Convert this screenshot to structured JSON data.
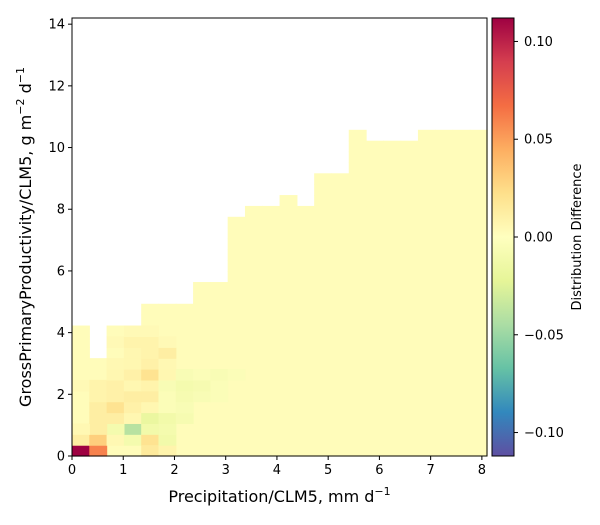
{
  "chart_data": {
    "type": "heatmap",
    "title": "",
    "xlabel": {
      "text": "Precipitation/CLM5,  mm d",
      "sup": "−1"
    },
    "ylabel": {
      "pre": "GrossPrimaryProductivity/CLM5,  g m",
      "sup1": "−2",
      "mid": " d",
      "sup2": "−1"
    },
    "xlim": [
      0,
      8.1
    ],
    "ylim": [
      0,
      14.2
    ],
    "x_ticks": [
      {
        "value": 0,
        "label": "0"
      },
      {
        "value": 1,
        "label": "1"
      },
      {
        "value": 2,
        "label": "2"
      },
      {
        "value": 3,
        "label": "3"
      },
      {
        "value": 4,
        "label": "4"
      },
      {
        "value": 5,
        "label": "5"
      },
      {
        "value": 6,
        "label": "6"
      },
      {
        "value": 7,
        "label": "7"
      },
      {
        "value": 8,
        "label": "8"
      }
    ],
    "y_ticks": [
      {
        "value": 0,
        "label": "0"
      },
      {
        "value": 2,
        "label": "2"
      },
      {
        "value": 4,
        "label": "4"
      },
      {
        "value": 6,
        "label": "6"
      },
      {
        "value": 8,
        "label": "8"
      },
      {
        "value": 10,
        "label": "10"
      },
      {
        "value": 12,
        "label": "12"
      },
      {
        "value": 14,
        "label": "14"
      }
    ],
    "bin": {
      "dx": 0.3376,
      "dy": 0.3525,
      "nx": 24,
      "ny": 40
    },
    "upper_bound_rows": [
      {
        "cols": [
          0
        ],
        "rows": 12
      },
      {
        "cols": [
          1
        ],
        "rows": 9
      },
      {
        "cols": [
          2,
          3
        ],
        "rows": 12
      },
      {
        "cols": [
          4,
          5,
          6
        ],
        "rows": 14
      },
      {
        "cols": [
          7,
          8
        ],
        "rows": 16
      },
      {
        "cols": [
          9
        ],
        "rows": 22
      },
      {
        "cols": [
          10,
          11
        ],
        "rows": 23
      },
      {
        "cols": [
          12
        ],
        "rows": 24
      },
      {
        "cols": [
          13
        ],
        "rows": 23
      },
      {
        "cols": [
          14,
          15
        ],
        "rows": 26
      },
      {
        "cols": [
          16
        ],
        "rows": 26
      },
      {
        "cols": [
          17,
          18,
          19
        ],
        "rows": 28
      },
      {
        "cols": [
          20,
          21
        ],
        "rows": 30
      },
      {
        "cols": [
          22,
          23
        ],
        "rows": 30
      }
    ],
    "tall_cells": [
      {
        "col": 16,
        "row_top": 30
      },
      {
        "col": 17,
        "row_top": 29
      },
      {
        "col": 18,
        "row_top": 29
      },
      {
        "col": 19,
        "row_top": 29
      },
      {
        "col": 20,
        "row_top": 30
      },
      {
        "col": 21,
        "row_top": 30
      },
      {
        "col": 22,
        "row_top": 29
      },
      {
        "col": 23,
        "row_top": 29
      },
      {
        "col": 24,
        "row_top": 29
      },
      {
        "col": 25,
        "row_top": 29
      },
      {
        "col": 26,
        "row_top": 28
      },
      {
        "col": 27,
        "row_top": 28
      }
    ],
    "cells": [
      {
        "col": 0,
        "row": 0,
        "value": 0.112
      },
      {
        "col": 1,
        "row": 0,
        "value": 0.06
      },
      {
        "col": 0,
        "row": 1,
        "value": 0.012
      },
      {
        "col": 1,
        "row": 1,
        "value": 0.03
      },
      {
        "col": 2,
        "row": 1,
        "value": 0.005
      },
      {
        "col": 3,
        "row": 1,
        "value": -0.01
      },
      {
        "col": 3,
        "row": 2,
        "value": -0.04
      },
      {
        "col": 4,
        "row": 1,
        "value": 0.02
      },
      {
        "col": 4,
        "row": 0,
        "value": 0.015
      },
      {
        "col": 5,
        "row": 0,
        "value": 0.008
      },
      {
        "col": 5,
        "row": 1,
        "value": -0.012
      },
      {
        "col": 5,
        "row": 2,
        "value": -0.01
      },
      {
        "col": 4,
        "row": 2,
        "value": -0.012
      },
      {
        "col": 2,
        "row": 2,
        "value": -0.01
      },
      {
        "col": 1,
        "row": 2,
        "value": 0.012
      },
      {
        "col": 0,
        "row": 2,
        "value": 0.005
      },
      {
        "col": 1,
        "row": 3,
        "value": 0.012
      },
      {
        "col": 2,
        "row": 3,
        "value": 0.012
      },
      {
        "col": 3,
        "row": 3,
        "value": 0.006
      },
      {
        "col": 4,
        "row": 3,
        "value": -0.018
      },
      {
        "col": 5,
        "row": 3,
        "value": -0.012
      },
      {
        "col": 6,
        "row": 3,
        "value": -0.008
      },
      {
        "col": 1,
        "row": 4,
        "value": 0.012
      },
      {
        "col": 2,
        "row": 4,
        "value": 0.02
      },
      {
        "col": 3,
        "row": 4,
        "value": 0.01
      },
      {
        "col": 4,
        "row": 4,
        "value": 0.006
      },
      {
        "col": 5,
        "row": 4,
        "value": -0.004
      },
      {
        "col": 6,
        "row": 4,
        "value": -0.006
      },
      {
        "col": 1,
        "row": 5,
        "value": 0.008
      },
      {
        "col": 2,
        "row": 5,
        "value": 0.01
      },
      {
        "col": 3,
        "row": 5,
        "value": 0.012
      },
      {
        "col": 4,
        "row": 5,
        "value": 0.012
      },
      {
        "col": 5,
        "row": 5,
        "value": -0.004
      },
      {
        "col": 6,
        "row": 5,
        "value": -0.008
      },
      {
        "col": 7,
        "row": 5,
        "value": -0.006
      },
      {
        "col": 8,
        "row": 5,
        "value": -0.004
      },
      {
        "col": 0,
        "row": 6,
        "value": 0.004
      },
      {
        "col": 1,
        "row": 6,
        "value": 0.008
      },
      {
        "col": 2,
        "row": 6,
        "value": 0.01
      },
      {
        "col": 3,
        "row": 6,
        "value": 0.006
      },
      {
        "col": 4,
        "row": 6,
        "value": 0.008
      },
      {
        "col": 5,
        "row": 6,
        "value": -0.006
      },
      {
        "col": 6,
        "row": 6,
        "value": -0.01
      },
      {
        "col": 7,
        "row": 6,
        "value": -0.008
      },
      {
        "col": 8,
        "row": 6,
        "value": -0.004
      },
      {
        "col": 2,
        "row": 7,
        "value": 0.006
      },
      {
        "col": 3,
        "row": 7,
        "value": 0.01
      },
      {
        "col": 4,
        "row": 7,
        "value": 0.02
      },
      {
        "col": 5,
        "row": 7,
        "value": 0.006
      },
      {
        "col": 6,
        "row": 7,
        "value": -0.006
      },
      {
        "col": 7,
        "row": 7,
        "value": -0.004
      },
      {
        "col": 8,
        "row": 7,
        "value": -0.006
      },
      {
        "col": 9,
        "row": 7,
        "value": -0.004
      },
      {
        "col": 2,
        "row": 8,
        "value": 0.005
      },
      {
        "col": 3,
        "row": 8,
        "value": 0.006
      },
      {
        "col": 4,
        "row": 8,
        "value": 0.01
      },
      {
        "col": 5,
        "row": 8,
        "value": 0.005
      },
      {
        "col": 3,
        "row": 9,
        "value": 0.006
      },
      {
        "col": 4,
        "row": 9,
        "value": 0.008
      },
      {
        "col": 5,
        "row": 9,
        "value": 0.012
      },
      {
        "col": 2,
        "row": 10,
        "value": 0.004
      },
      {
        "col": 3,
        "row": 10,
        "value": 0.008
      },
      {
        "col": 4,
        "row": 10,
        "value": 0.008
      },
      {
        "col": 5,
        "row": 10,
        "value": 0.004
      },
      {
        "col": 3,
        "row": 11,
        "value": 0.004
      },
      {
        "col": 4,
        "row": 11,
        "value": 0.004
      }
    ],
    "colorbar": {
      "label": "Distribution Difference",
      "vmin": -0.112,
      "vmax": 0.112,
      "ticks": [
        {
          "value": 0.1,
          "label": "0.10"
        },
        {
          "value": 0.05,
          "label": "0.05"
        },
        {
          "value": 0.0,
          "label": "0.00"
        },
        {
          "value": -0.05,
          "label": "−0.05"
        },
        {
          "value": -0.1,
          "label": "−0.10"
        }
      ],
      "colormap": "Spectral_r",
      "colors": [
        "#5e4fa2",
        "#3288bd",
        "#66c2a5",
        "#abdda4",
        "#e6f598",
        "#ffffbf",
        "#fee08b",
        "#fdae61",
        "#f46d43",
        "#d53e4f",
        "#9e0142"
      ]
    },
    "background_value": 0.002
  }
}
